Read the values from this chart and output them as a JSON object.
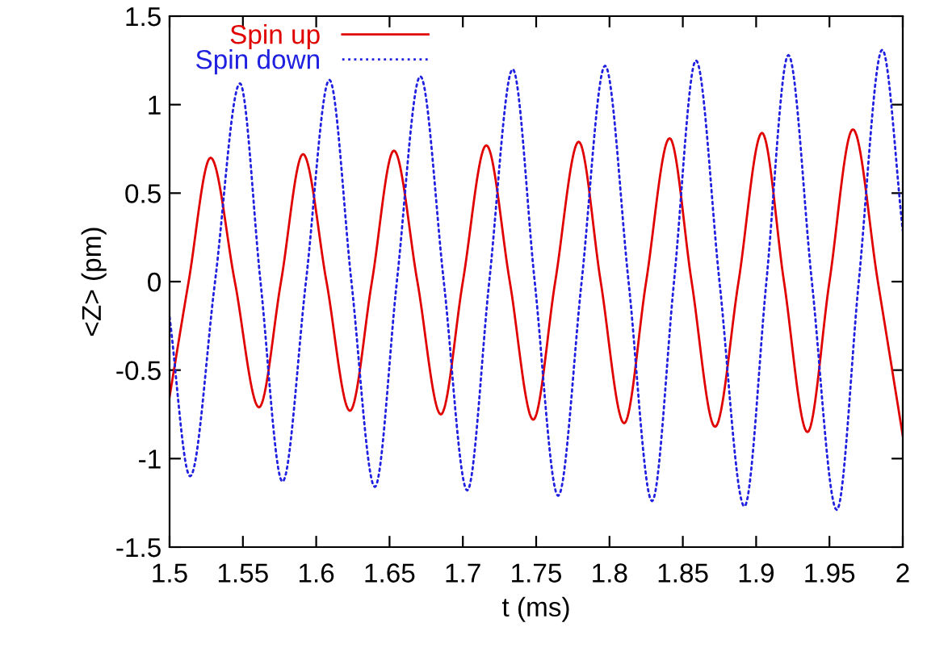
{
  "chart_data": {
    "type": "line",
    "xlabel": "t (ms)",
    "ylabel": "<Z> (pm)",
    "xlim": [
      1.5,
      2
    ],
    "ylim": [
      -1.5,
      1.5
    ],
    "xticks": [
      1.5,
      1.55,
      1.6,
      1.65,
      1.7,
      1.75,
      1.8,
      1.85,
      1.9,
      1.95,
      2
    ],
    "yticks": [
      -1.5,
      -1,
      -0.5,
      0,
      0.5,
      1,
      1.5
    ],
    "grid": false,
    "legend": "top left",
    "series": [
      {
        "name": "Spin up",
        "color": "#e00000",
        "line_style": "solid",
        "x": [
          1.5,
          1.513,
          1.528,
          1.5445,
          1.561,
          1.576,
          1.591,
          1.607,
          1.623,
          1.638,
          1.653,
          1.669,
          1.685,
          1.7,
          1.716,
          1.732,
          1.748,
          1.763,
          1.779,
          1.794,
          1.81,
          1.825,
          1.841,
          1.856,
          1.872,
          1.888,
          1.904,
          1.919,
          1.935,
          1.95,
          1.966,
          1.983,
          2.0
        ],
        "values": [
          -0.65,
          0.0,
          0.7,
          0.0,
          -0.71,
          0.0,
          0.72,
          0.0,
          -0.73,
          0.0,
          0.74,
          0.0,
          -0.75,
          0.0,
          0.77,
          0.0,
          -0.78,
          0.0,
          0.79,
          0.0,
          -0.8,
          0.0,
          0.81,
          0.0,
          -0.82,
          0.0,
          0.84,
          0.0,
          -0.85,
          0.0,
          0.86,
          0.0,
          -0.87
        ]
      },
      {
        "name": "Spin down",
        "color": "#2020e0",
        "line_style": "dotted",
        "x": [
          1.5,
          1.514,
          1.531,
          1.548,
          1.562,
          1.577,
          1.593,
          1.609,
          1.624,
          1.64,
          1.655,
          1.671,
          1.687,
          1.703,
          1.718,
          1.734,
          1.749,
          1.765,
          1.781,
          1.797,
          1.813,
          1.829,
          1.844,
          1.859,
          1.875,
          1.892,
          1.907,
          1.922,
          1.938,
          1.955,
          1.97,
          1.986,
          2.0
        ],
        "values": [
          -0.2,
          -1.1,
          0.0,
          1.12,
          0.0,
          -1.13,
          0.0,
          1.14,
          0.0,
          -1.16,
          0.0,
          1.16,
          0.0,
          -1.18,
          0.0,
          1.2,
          0.0,
          -1.21,
          0.0,
          1.22,
          0.0,
          -1.24,
          0.0,
          1.25,
          0.0,
          -1.27,
          0.0,
          1.28,
          0.0,
          -1.29,
          0.0,
          1.31,
          0.29
        ]
      }
    ]
  }
}
